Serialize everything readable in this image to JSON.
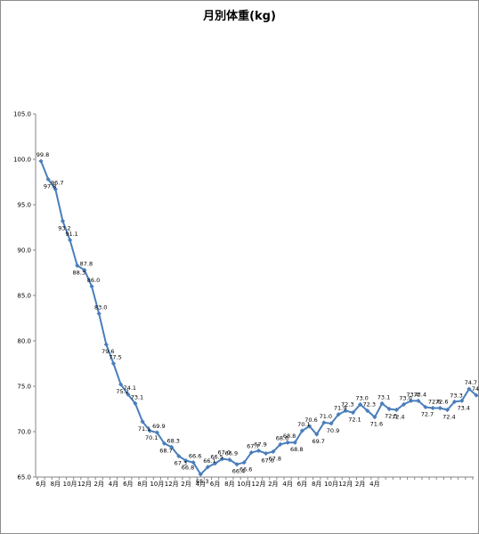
{
  "chart_data": {
    "type": "line",
    "title": "月別体重(kg)",
    "xlabel": "",
    "ylabel": "",
    "ylim": [
      65.0,
      105.0
    ],
    "yticks": [
      "65.0",
      "70.0",
      "75.0",
      "80.0",
      "85.0",
      "90.0",
      "95.0",
      "100.0",
      "105.0"
    ],
    "grid": false,
    "legend": "none",
    "line_color": "#4a7ebb",
    "x_tick_labels": [
      "6月",
      "8月",
      "10月",
      "12月",
      "2月",
      "4月",
      "6月",
      "8月",
      "10月",
      "12月",
      "2月",
      "4月",
      "6月",
      "8月",
      "10月",
      "12月",
      "2月",
      "4月",
      "6月",
      "8月",
      "10月",
      "12月",
      "2月",
      "4月"
    ],
    "series": [
      {
        "values": [
          99.8,
          97.8,
          96.7,
          93.2,
          91.1,
          88.3,
          87.8,
          86.0,
          83.0,
          79.6,
          77.5,
          75.2,
          74.1,
          73.1,
          71.1,
          70.1,
          69.9,
          68.7,
          68.3,
          67.3,
          66.8,
          66.6,
          65.3,
          66.1,
          66.5,
          67.0,
          66.9,
          66.4,
          66.6,
          67.7,
          67.9,
          67.6,
          67.8,
          68.6,
          68.8,
          68.8,
          70.1,
          70.6,
          69.7,
          71.0,
          70.9,
          71.9,
          72.3,
          72.1,
          73.0,
          72.3,
          71.6,
          73.1,
          72.5,
          72.4,
          73.0,
          73.4,
          73.4,
          72.7,
          72.6,
          72.6,
          72.4,
          73.3,
          73.4,
          74.7,
          74.0
        ],
        "labels": [
          "99.8",
          "97.8",
          "96.7",
          "93.2",
          "91.1",
          "88.3",
          "87.8",
          "86.0",
          "83.0",
          "79.6",
          "77.5",
          "75.2",
          "74.1",
          "73.1",
          "71.1",
          "70.1",
          "69.9",
          "68.7",
          "68.3",
          "67.3",
          "66.8",
          "66.6",
          "65.3",
          "66.1",
          "66.5",
          "67.0",
          "66.9",
          "66.4",
          "66.6",
          "67.7",
          "67.9",
          "67.6",
          "67.8",
          "68.6",
          "68.8",
          "68.8",
          "70.1",
          "70.6",
          "69.7",
          "71.0",
          "70.9",
          "71.9",
          "72.3",
          "72.1",
          "73.0",
          "72.3",
          "71.6",
          "73.1",
          "72.5",
          "72.4",
          "73.0",
          "73.4",
          "73.4",
          "72.7",
          "72.6",
          "72.6",
          "72.4",
          "73.3",
          "73.4",
          "74.7",
          "74.0"
        ]
      }
    ]
  }
}
